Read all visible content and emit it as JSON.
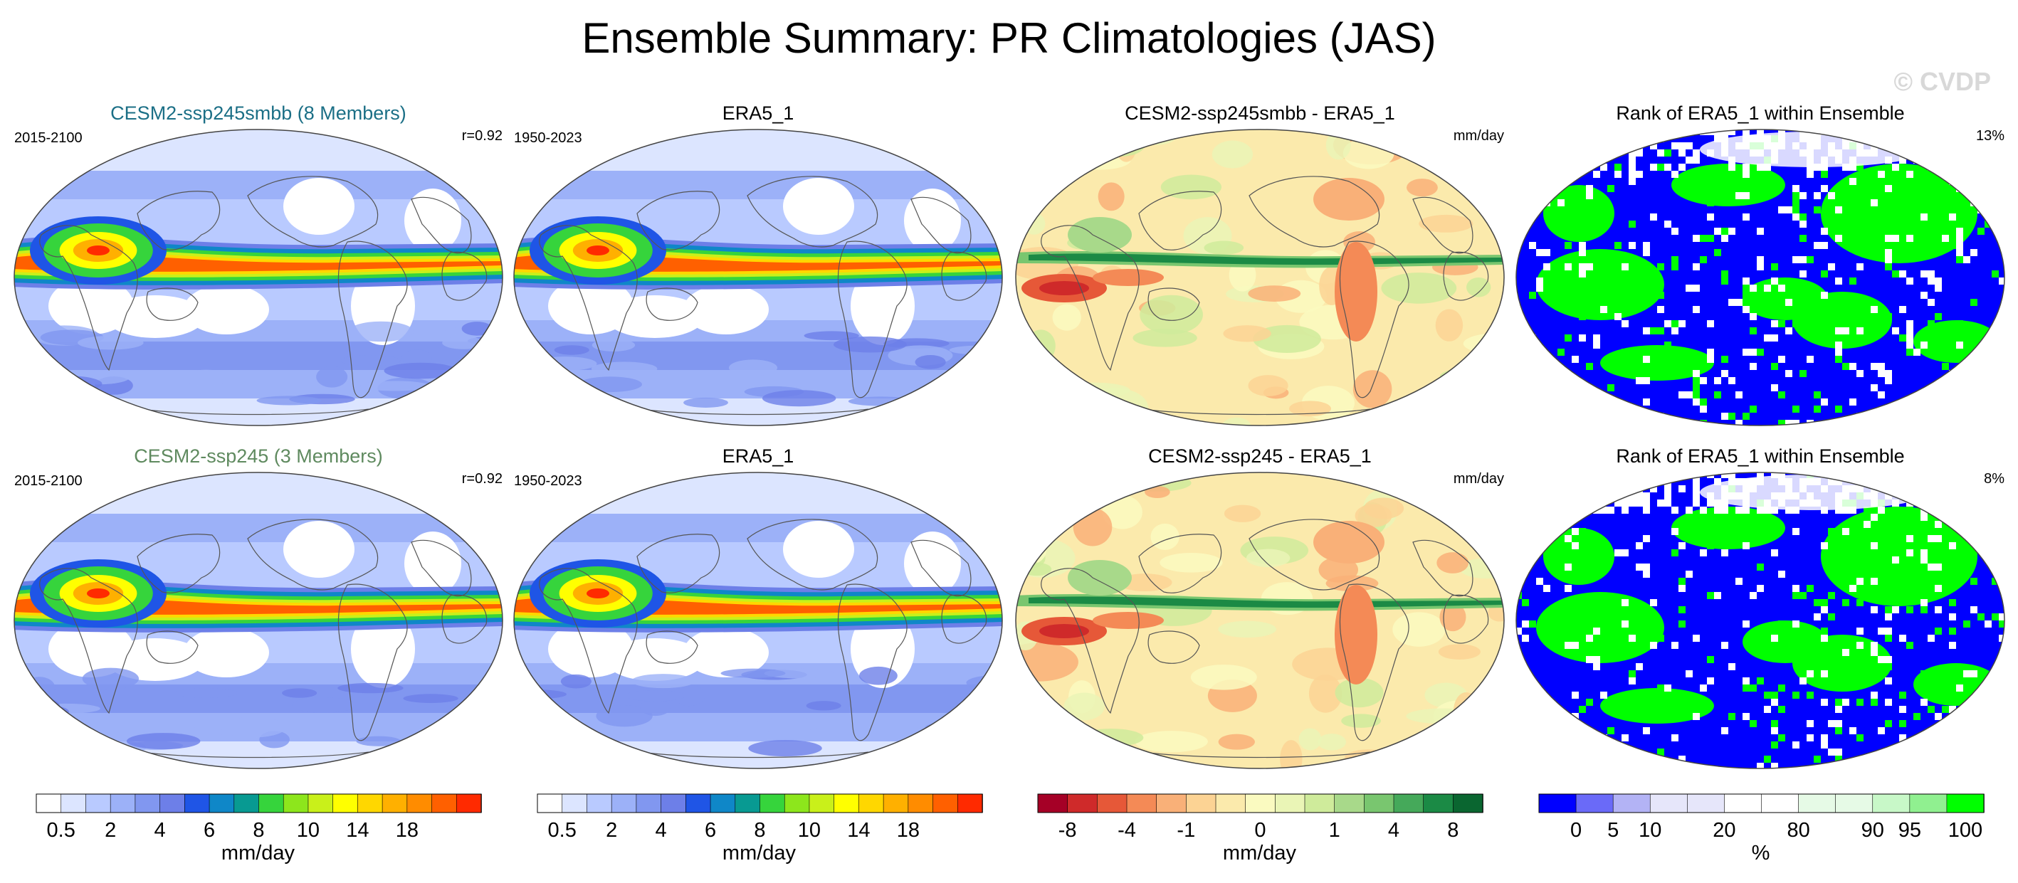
{
  "title": "Ensemble Summary: PR Climatologies (JAS)",
  "watermark": "© CVDP",
  "rows": [
    {
      "panels": [
        {
          "title": "CESM2-ssp245smbb (8 Members)",
          "title_color": "#1b6f86",
          "left": "2015-2100",
          "right": "r=0.92",
          "type": "precip"
        },
        {
          "title": "ERA5_1",
          "title_color": "#000000",
          "left": "1950-2023",
          "right": "",
          "type": "precip"
        },
        {
          "title": "CESM2-ssp245smbb - ERA5_1",
          "title_color": "#000000",
          "left": "",
          "right": "mm/day",
          "type": "diff"
        },
        {
          "title": "Rank of ERA5_1 within Ensemble",
          "title_color": "#000000",
          "left": "",
          "right": "13%",
          "type": "rank"
        }
      ]
    },
    {
      "panels": [
        {
          "title": "CESM2-ssp245 (3 Members)",
          "title_color": "#5f8a5f",
          "left": "2015-2100",
          "right": "r=0.92",
          "type": "precip"
        },
        {
          "title": "ERA5_1",
          "title_color": "#000000",
          "left": "1950-2023",
          "right": "",
          "type": "precip"
        },
        {
          "title": "CESM2-ssp245 - ERA5_1",
          "title_color": "#000000",
          "left": "",
          "right": "mm/day",
          "type": "diff"
        },
        {
          "title": "Rank of ERA5_1 within Ensemble",
          "title_color": "#000000",
          "left": "",
          "right": "8%",
          "type": "rank"
        }
      ]
    }
  ],
  "colorbars": [
    {
      "colors": [
        "#ffffff",
        "#dce5ff",
        "#b9caff",
        "#9cb1f8",
        "#8197f0",
        "#6d7fe8",
        "#1f55e6",
        "#0f87c8",
        "#089a92",
        "#36d43c",
        "#8de61c",
        "#c9f01a",
        "#ffff00",
        "#ffd700",
        "#ffb000",
        "#ff8c00",
        "#ff6000",
        "#ff2a00"
      ],
      "ticks": [
        "0.5",
        "2",
        "4",
        "6",
        "8",
        "10",
        "14",
        "18"
      ],
      "unit": "mm/day"
    },
    {
      "colors": [
        "#ffffff",
        "#dce5ff",
        "#b9caff",
        "#9cb1f8",
        "#8197f0",
        "#6d7fe8",
        "#1f55e6",
        "#0f87c8",
        "#089a92",
        "#36d43c",
        "#8de61c",
        "#c9f01a",
        "#ffff00",
        "#ffd700",
        "#ffb000",
        "#ff8c00",
        "#ff6000",
        "#ff2a00"
      ],
      "ticks": [
        "0.5",
        "2",
        "4",
        "6",
        "8",
        "10",
        "14",
        "18"
      ],
      "unit": "mm/day"
    },
    {
      "colors": [
        "#a50026",
        "#cf2a2a",
        "#e65838",
        "#f48a56",
        "#f9b078",
        "#fcd394",
        "#fbeaac",
        "#fafac0",
        "#eaf5b6",
        "#cfeb9b",
        "#a8d98a",
        "#79c66f",
        "#45a95a",
        "#1b8a45",
        "#0a6630"
      ],
      "ticks": [
        "-8",
        "-4",
        "-1",
        "0",
        "1",
        "4",
        "8"
      ],
      "unit": "mm/day"
    },
    {
      "colors": [
        "#0000ff",
        "#6a6af8",
        "#b3b3f5",
        "#e6e6fa",
        "#e6e6fa",
        "#ffffff",
        "#ffffff",
        "#e6fae6",
        "#e6fae6",
        "#c8f8c8",
        "#90f090",
        "#00ff00"
      ],
      "ticks": [
        "0",
        "5",
        "10",
        "20",
        "80",
        "90",
        "95",
        "100"
      ],
      "unit": "%"
    }
  ]
}
